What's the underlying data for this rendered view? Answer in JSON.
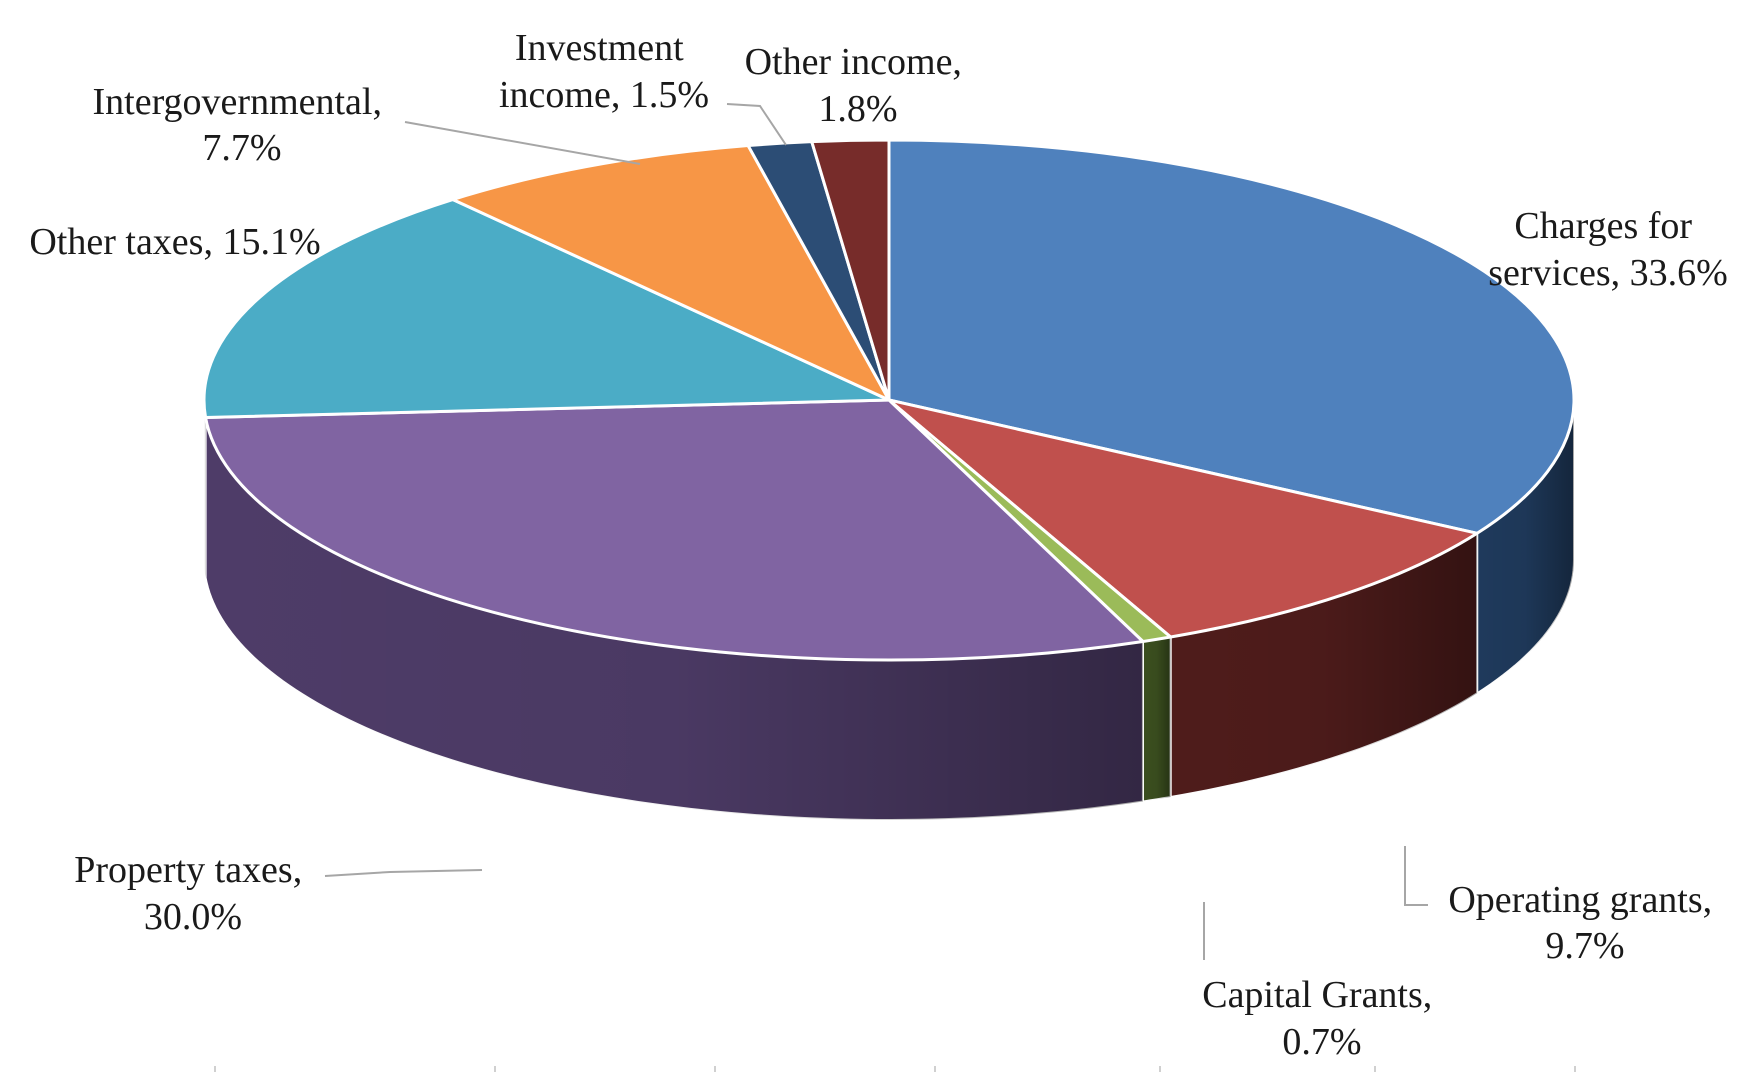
{
  "chart_data": {
    "type": "pie",
    "style": "3d",
    "title": "",
    "slices": [
      {
        "label": "Charges for services",
        "value": 33.6,
        "display": "33.6%",
        "color": "#4F81BD",
        "side_color": "#1F3A5C"
      },
      {
        "label": "Operating grants",
        "value": 9.7,
        "display": "9.7%",
        "color": "#C0504D",
        "side_color": "#4F1C1B"
      },
      {
        "label": "Capital Grants",
        "value": 0.7,
        "display": "0.7%",
        "color": "#9BBB59",
        "side_color": "#3B4F1F"
      },
      {
        "label": "Property taxes",
        "value": 30.0,
        "display": "30.0%",
        "color": "#8064A2",
        "side_color": "#4E3C68"
      },
      {
        "label": "Other taxes",
        "value": 15.1,
        "display": "15.1%",
        "color": "#4BACC6",
        "side_color": "#1F5A6A"
      },
      {
        "label": "Intergovernmental",
        "value": 7.7,
        "display": "7.7%",
        "color": "#F79646",
        "side_color": "#8A4E1E"
      },
      {
        "label": "Investment income",
        "value": 1.5,
        "display": "1.5%",
        "color": "#2C4D75",
        "side_color": "#15263A"
      },
      {
        "label": "Other income",
        "value": 1.8,
        "display": "1.8%",
        "color": "#772C2A",
        "side_color": "#3A1514"
      }
    ],
    "data_labels": {
      "charges_line1": "Charges for",
      "charges_line2": "services, 33.6%",
      "operating_line1": "Operating grants,",
      "operating_line2": "9.7%",
      "capital_line1": "Capital Grants,",
      "capital_line2": "0.7%",
      "property_line1": "Property taxes,",
      "property_line2": "30.0%",
      "other_taxes": "Other taxes, 15.1%",
      "intergov_line1": "Intergovernmental,",
      "intergov_line2": "7.7%",
      "investment_line1": "Investment",
      "investment_line2": "income, 1.5%",
      "other_income_line1": "Other income,",
      "other_income_line2": "1.8%"
    }
  }
}
